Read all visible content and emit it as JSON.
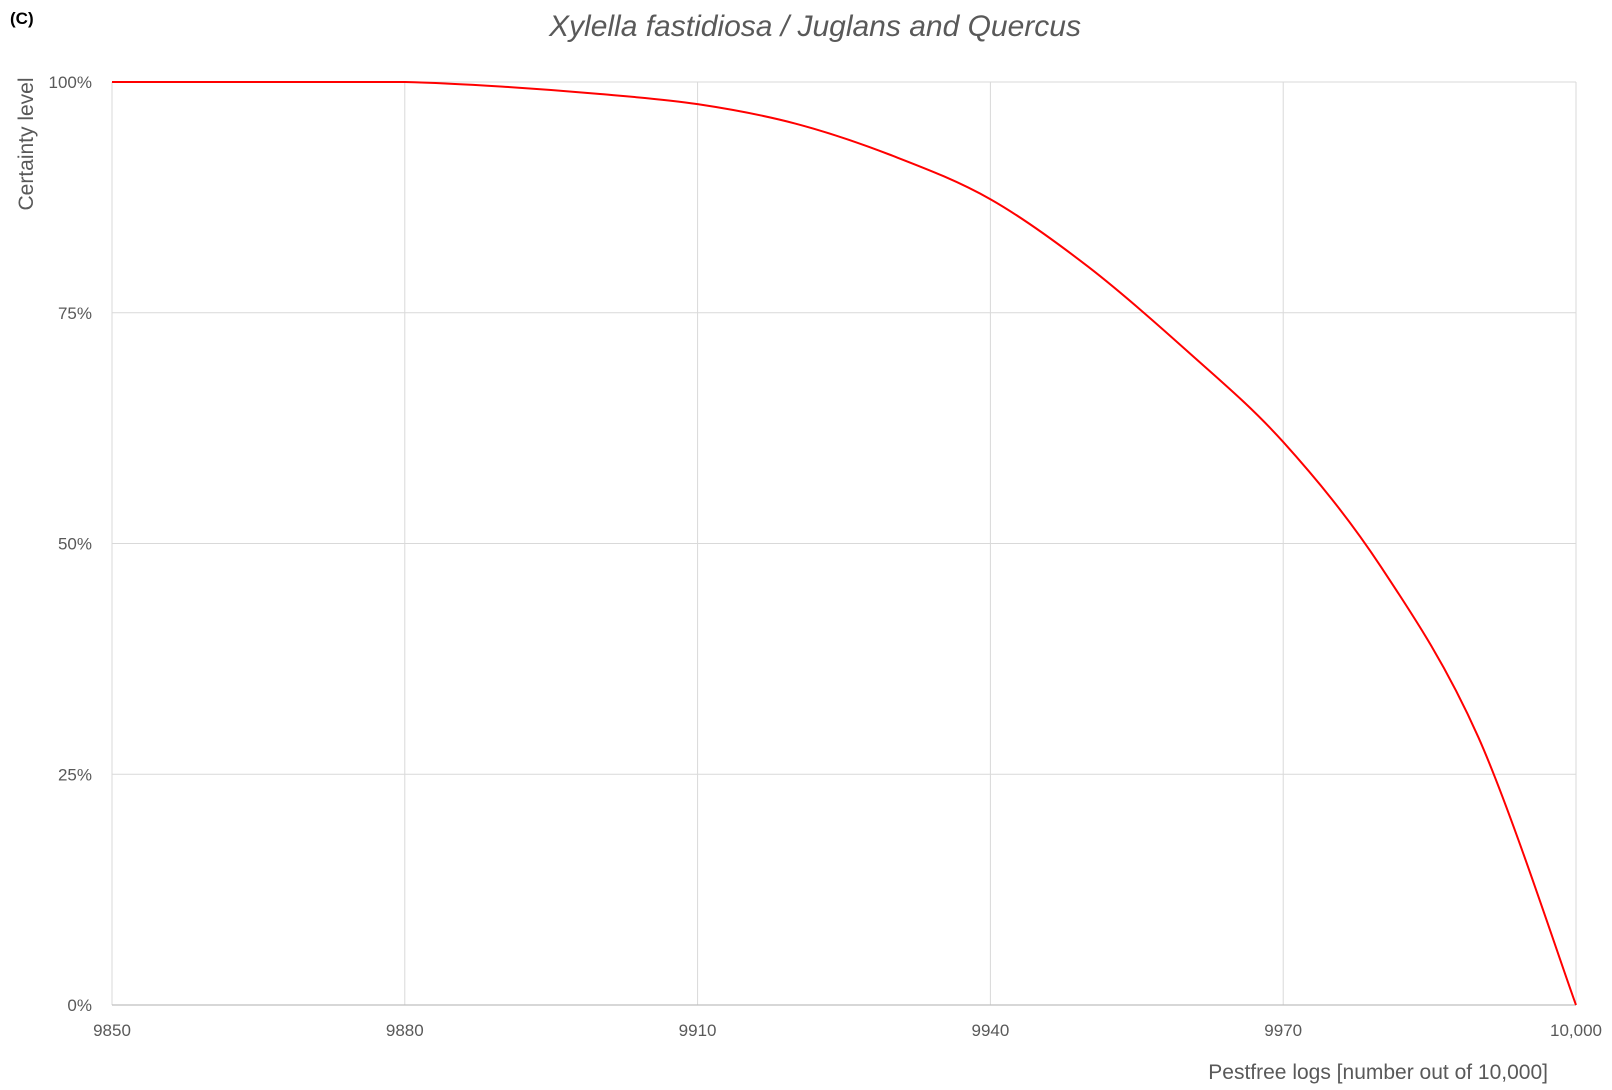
{
  "panel_label": "(C)",
  "chart_data": {
    "type": "line",
    "title": "Xylella fastidiosa / Juglans and Quercus",
    "xlabel": "Pestfree logs [number out of 10,000]",
    "ylabel": "Certainty level",
    "xlim": [
      9850,
      10000
    ],
    "ylim": [
      0,
      1
    ],
    "x_ticks": [
      9850,
      9880,
      9910,
      9940,
      9970,
      10000
    ],
    "x_tick_labels": [
      "9850",
      "9880",
      "9910",
      "9940",
      "9970",
      "10,000"
    ],
    "y_ticks": [
      0,
      0.25,
      0.5,
      0.75,
      1
    ],
    "y_tick_labels": [
      "0%",
      "25%",
      "50%",
      "75%",
      "100%"
    ],
    "grid": true,
    "series": [
      {
        "color": "#ff0000",
        "x": [
          9850,
          9860,
          9870,
          9880,
          9890,
          9900,
          9910,
          9920,
          9930,
          9940,
          9950,
          9960,
          9970,
          9980,
          9990,
          10000
        ],
        "y": [
          1.0,
          1.0,
          1.0,
          1.0,
          0.995,
          0.987,
          0.976,
          0.955,
          0.92,
          0.873,
          0.8,
          0.71,
          0.61,
          0.475,
          0.29,
          0.0
        ]
      }
    ]
  }
}
